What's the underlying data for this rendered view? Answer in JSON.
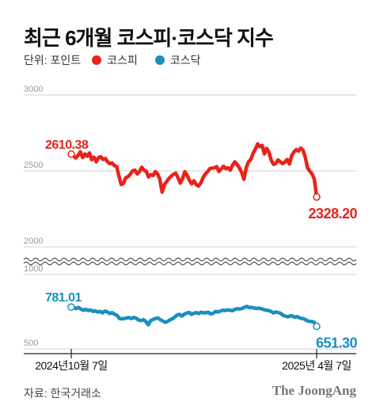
{
  "title": "최근 6개월 코스피·코스닥 지수",
  "legend": {
    "unit_label": "단위: 포인트",
    "items": [
      {
        "label": "코스피",
        "color": "#e8231a"
      },
      {
        "label": "코스닥",
        "color": "#1b8ebf"
      }
    ]
  },
  "source": "자료: 한국거래소",
  "publisher": "The JoongAng",
  "chart_data": [
    {
      "type": "line",
      "name": "코스피",
      "color": "#e8231a",
      "ylim": [
        2000,
        3000
      ],
      "yticks": [
        "3000",
        "2500",
        "2000"
      ],
      "x_start": "2024년10월 7일",
      "x_end": "2025년 4월 7일",
      "start_label": "2610.38",
      "end_label": "2328.20",
      "values": [
        2610.38,
        2598,
        2585,
        2602,
        2625,
        2588,
        2612,
        2596,
        2618,
        2574,
        2590,
        2560,
        2587,
        2594,
        2575,
        2582,
        2560,
        2548,
        2552,
        2535,
        2528,
        2465,
        2410,
        2418,
        2455,
        2462,
        2478,
        2500,
        2505,
        2480,
        2495,
        2524,
        2505,
        2498,
        2460,
        2475,
        2470,
        2495,
        2480,
        2445,
        2360,
        2410,
        2430,
        2450,
        2465,
        2478,
        2485,
        2455,
        2420,
        2450,
        2495,
        2470,
        2438,
        2415,
        2435,
        2410,
        2400,
        2420,
        2455,
        2480,
        2495,
        2515,
        2518,
        2520,
        2528,
        2496,
        2512,
        2530,
        2515,
        2520,
        2505,
        2538,
        2560,
        2542,
        2520,
        2490,
        2445,
        2520,
        2560,
        2575,
        2615,
        2642,
        2678,
        2660,
        2668,
        2612,
        2648,
        2623,
        2570,
        2543,
        2550,
        2572,
        2560,
        2548,
        2558,
        2575,
        2545,
        2600,
        2625,
        2640,
        2630,
        2650,
        2636,
        2590,
        2520,
        2498,
        2480,
        2445,
        2328.2
      ]
    },
    {
      "type": "line",
      "name": "코스닥",
      "color": "#1b8ebf",
      "ylim": [
        500,
        1000
      ],
      "yticks": [
        "1000",
        "500"
      ],
      "x_start": "2024년10월 7일",
      "x_end": "2025년 4월 7일",
      "start_label": "781.01",
      "end_label": "651.30",
      "values": [
        781.01,
        776,
        772,
        778,
        768,
        760,
        766,
        758,
        762,
        752,
        757,
        748,
        752,
        742,
        755,
        749,
        738,
        744,
        732,
        727,
        705,
        702,
        704,
        708,
        710,
        704,
        712,
        706,
        694,
        690,
        697,
        684,
        662,
        690,
        698,
        704,
        708,
        697,
        688,
        679,
        684,
        695,
        702,
        714,
        728,
        732,
        721,
        734,
        740,
        745,
        732,
        740,
        744,
        738,
        747,
        742,
        744,
        746,
        735,
        740,
        752,
        748,
        755,
        760,
        758,
        762,
        760,
        757,
        766,
        770,
        768,
        772,
        780,
        786,
        778,
        779,
        775,
        772,
        774,
        770,
        765,
        760,
        758,
        752,
        742,
        748,
        744,
        740,
        726,
        720,
        716,
        722,
        720,
        714,
        717,
        708,
        705,
        700,
        690,
        685,
        684,
        678,
        651.3
      ]
    }
  ]
}
